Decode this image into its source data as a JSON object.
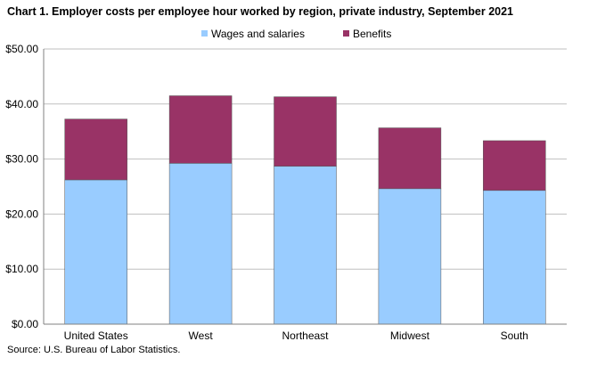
{
  "title": "Chart 1. Employer costs per employee hour worked by region, private industry, September 2021",
  "source": "Source: U.S. Bureau of Labor Statistics.",
  "colors": {
    "wages": "#99ccff",
    "benefits": "#993366",
    "grid": "#bfbfbf",
    "axis": "#808080"
  },
  "chart_data": {
    "type": "bar",
    "stacked": true,
    "title": "Chart 1. Employer costs per employee hour worked by region, private industry, September 2021",
    "categories": [
      "United States",
      "West",
      "Northeast",
      "Midwest",
      "South"
    ],
    "series": [
      {
        "name": "Wages and salaries",
        "values": [
          26.22,
          29.23,
          28.7,
          24.62,
          24.3
        ]
      },
      {
        "name": "Benefits",
        "values": [
          11.05,
          12.27,
          12.62,
          11.05,
          9.04
        ]
      }
    ],
    "ylim": [
      0,
      50
    ],
    "yticks": [
      0,
      10,
      20,
      30,
      40,
      50
    ],
    "ytick_labels": [
      "$0.00",
      "$10.00",
      "$20.00",
      "$30.00",
      "$40.00",
      "$50.00"
    ],
    "legend_position": "top-center",
    "grid": true
  }
}
